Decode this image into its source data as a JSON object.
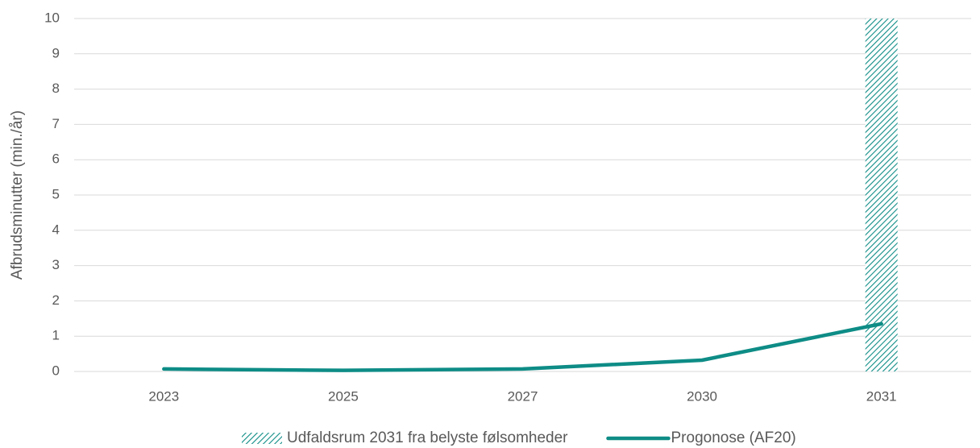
{
  "chart_data": {
    "type": "combo",
    "y_label": "Afbrudsminutter (min./år)",
    "categories": [
      "2023",
      "2025",
      "2027",
      "2030",
      "2031"
    ],
    "series": [
      {
        "name": "Udfaldsrum 2031 fra belyste følsomheder",
        "type": "bar",
        "pattern": "hatch",
        "color": "#0e8c86",
        "values": [
          null,
          null,
          null,
          null,
          10
        ]
      },
      {
        "name": "Progonose (AF20)",
        "type": "line",
        "color": "#0e8c86",
        "values": [
          0.07,
          0.03,
          0.07,
          0.32,
          1.35
        ]
      }
    ],
    "ylim": [
      0,
      10
    ],
    "yticks": [
      0,
      1,
      2,
      3,
      4,
      5,
      6,
      7,
      8,
      9,
      10
    ],
    "grid": true,
    "legend": "bottom"
  }
}
